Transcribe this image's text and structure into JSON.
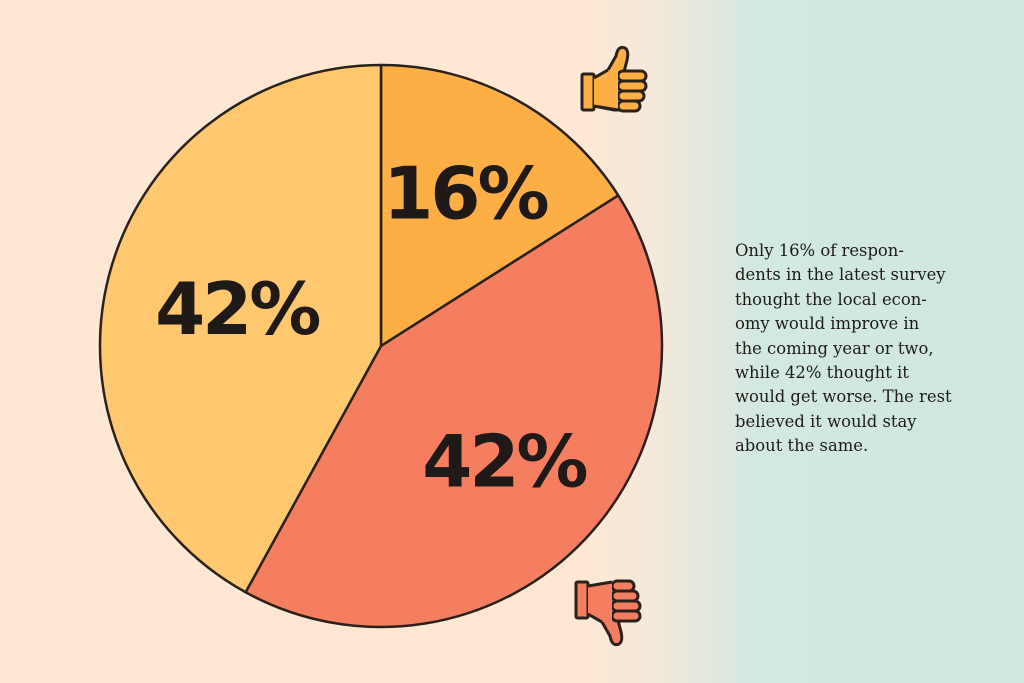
{
  "chart_data": {
    "type": "pie",
    "title": "",
    "slices": [
      {
        "label": "16%",
        "value": 16,
        "color": "#FDAF45"
      },
      {
        "label": "42%",
        "value": 42,
        "color": "#F57E60"
      },
      {
        "label": "42%",
        "value": 42,
        "color": "#FFC86F"
      }
    ],
    "start": "12 o'clock",
    "direction": "clockwise",
    "outline_color": "#2A211C"
  },
  "note": {
    "lines": [
      "Only 16% of respon-",
      "dents in the latest survey",
      "thought the local econ-",
      "omy would improve in",
      "the coming year or two,",
      "while 42% thought it",
      "would get worse. The rest",
      "believed it would stay",
      "about the same."
    ]
  },
  "icons": {
    "up": {
      "name": "thumbs-up-icon",
      "fill": "#FDAF45",
      "stroke": "#2A211C"
    },
    "down": {
      "name": "thumbs-down-icon",
      "fill": "#F57E60",
      "stroke": "#2A211C"
    }
  }
}
